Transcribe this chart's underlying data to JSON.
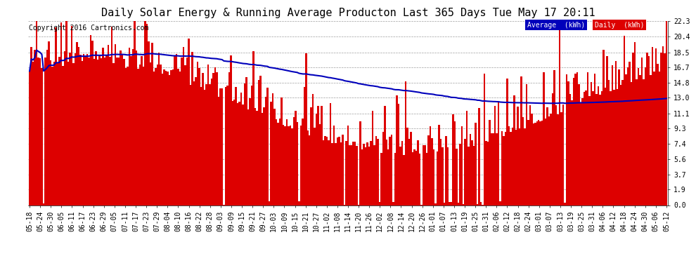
{
  "title": "Daily Solar Energy & Running Average Producton Last 365 Days Tue May 17 20:11",
  "copyright": "Copyright 2016 Cartronics.com",
  "legend_avg_label": "Average  (kWh)",
  "legend_daily_label": "Daily  (kWh)",
  "legend_avg_color": "#0000bb",
  "legend_daily_color": "#dd0000",
  "bar_color": "#dd0000",
  "avg_line_color": "#0000bb",
  "background_color": "#ffffff",
  "plot_bg_color": "#ffffff",
  "ylim": [
    0.0,
    22.3
  ],
  "yticks": [
    0.0,
    1.9,
    3.7,
    5.6,
    7.4,
    9.3,
    11.1,
    13.0,
    14.8,
    16.7,
    18.5,
    20.4,
    22.3
  ],
  "title_fontsize": 11,
  "copyright_fontsize": 7,
  "tick_fontsize": 7,
  "x_labels": [
    "05-18",
    "05-24",
    "05-30",
    "06-05",
    "06-11",
    "06-17",
    "06-23",
    "06-29",
    "07-05",
    "07-11",
    "07-17",
    "07-23",
    "07-29",
    "08-04",
    "08-10",
    "08-16",
    "08-22",
    "08-28",
    "09-03",
    "09-09",
    "09-15",
    "09-21",
    "09-27",
    "10-03",
    "10-09",
    "10-15",
    "10-21",
    "10-27",
    "11-02",
    "11-08",
    "11-14",
    "11-20",
    "11-26",
    "12-02",
    "12-08",
    "12-14",
    "12-20",
    "12-26",
    "01-01",
    "01-07",
    "01-13",
    "01-19",
    "01-25",
    "01-31",
    "02-06",
    "02-12",
    "02-18",
    "02-24",
    "03-01",
    "03-07",
    "03-13",
    "03-19",
    "03-25",
    "03-31",
    "04-06",
    "04-12",
    "04-18",
    "04-24",
    "04-30",
    "05-06",
    "05-12"
  ]
}
